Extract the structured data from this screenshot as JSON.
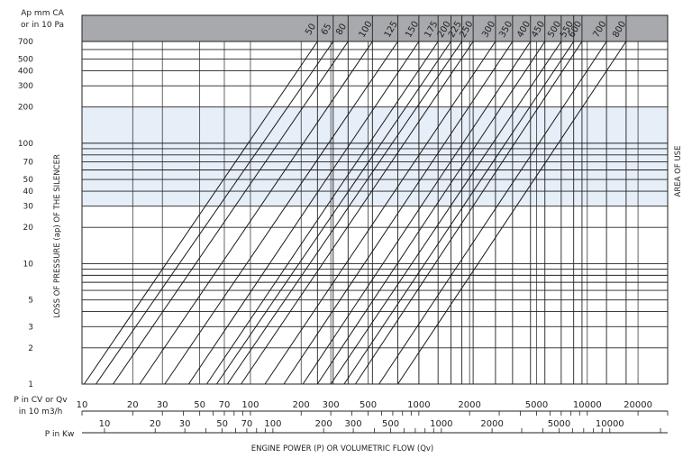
{
  "chart_data": {
    "type": "line",
    "y_unit_label_line1": "Ap mm CA",
    "y_unit_label_line2": "or in 10 Pa",
    "ylabel": "LOSS OF PRESSURE (ap) OF THE SILENCER",
    "xlabel": "ENGINE POWER (P) OR VOLUMETRIC FLOW (Qv)",
    "area_label": "AREA OF USE",
    "area_of_use": [
      30,
      200
    ],
    "y_scale": "log",
    "ylim": [
      1,
      700
    ],
    "y_ticks": [
      1,
      2,
      3,
      5,
      10,
      20,
      30,
      40,
      50,
      70,
      100,
      200,
      300,
      400,
      500,
      700
    ],
    "y_grid": [
      1,
      2,
      3,
      4,
      5,
      6,
      7,
      8,
      9,
      10,
      20,
      30,
      40,
      50,
      60,
      70,
      80,
      90,
      100,
      200,
      300,
      400,
      500,
      600,
      700
    ],
    "x_scale": "log",
    "x_axis_cv": {
      "label_line1": "P in CV or Qv",
      "label_line2": "in 10 m3/h",
      "range": [
        10,
        30000
      ],
      "ticks": [
        10,
        20,
        30,
        50,
        70,
        100,
        200,
        300,
        500,
        1000,
        2000,
        5000,
        10000,
        20000
      ]
    },
    "x_axis_kw": {
      "label": "P in Kw",
      "ticks": [
        10,
        20,
        30,
        50,
        70,
        100,
        200,
        300,
        500,
        1000,
        2000,
        5000,
        10000
      ]
    },
    "series": [
      {
        "name": "50",
        "x_at_1": 10.3,
        "x_at_700": 250
      },
      {
        "name": "65",
        "x_at_1": 12.1,
        "x_at_700": 310
      },
      {
        "name": "80",
        "x_at_1": 15.3,
        "x_at_700": 380
      },
      {
        "name": "100",
        "x_at_1": 22,
        "x_at_700": 530
      },
      {
        "name": "125",
        "x_at_1": 31,
        "x_at_700": 750
      },
      {
        "name": "150",
        "x_at_1": 43,
        "x_at_700": 1000
      },
      {
        "name": "175",
        "x_at_1": 55,
        "x_at_700": 1300
      },
      {
        "name": "200",
        "x_at_1": 63,
        "x_at_700": 1550
      },
      {
        "name": "225",
        "x_at_1": 73,
        "x_at_700": 1800
      },
      {
        "name": "250",
        "x_at_1": 88,
        "x_at_700": 2100
      },
      {
        "name": "300",
        "x_at_1": 122,
        "x_at_700": 2850
      },
      {
        "name": "350",
        "x_at_1": 158,
        "x_at_700": 3600
      },
      {
        "name": "400",
        "x_at_1": 205,
        "x_at_700": 4600
      },
      {
        "name": "450",
        "x_at_1": 250,
        "x_at_700": 5600
      },
      {
        "name": "500",
        "x_at_1": 300,
        "x_at_700": 7000
      },
      {
        "name": "550",
        "x_at_1": 360,
        "x_at_700": 8300
      },
      {
        "name": "600",
        "x_at_1": 420,
        "x_at_700": 9300
      },
      {
        "name": "700",
        "x_at_1": 580,
        "x_at_700": 13000
      },
      {
        "name": "800",
        "x_at_1": 750,
        "x_at_700": 17000
      }
    ]
  }
}
